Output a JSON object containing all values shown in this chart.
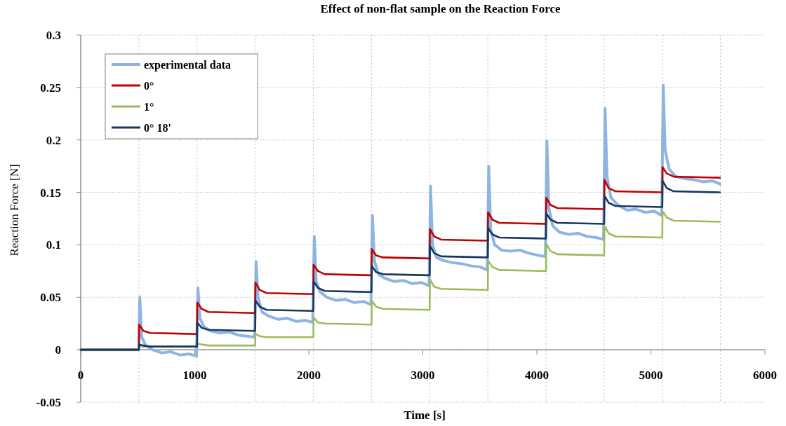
{
  "chart_data": {
    "type": "line",
    "title": "Effect of non-flat sample on the Reaction Force",
    "xlabel": "Time [s]",
    "ylabel": "Reaction Force [N]",
    "x": [
      0,
      510,
      512,
      550,
      610,
      1015,
      1020,
      1022,
      1060,
      1120,
      1525,
      1530,
      1532,
      1570,
      1630,
      2035,
      2040,
      2042,
      2080,
      2140,
      2545,
      2550,
      2552,
      2590,
      2650,
      3055,
      3060,
      3062,
      3100,
      3160,
      3565,
      3570,
      3572,
      3610,
      3670,
      4075,
      4080,
      4082,
      4120,
      4180,
      4585,
      4590,
      4592,
      4630,
      4690,
      5095,
      5100,
      5102,
      5140,
      5200,
      5605
    ],
    "series": [
      {
        "name": "experimental data",
        "color": "#8db4e2",
        "x": [
          0,
          510,
          518,
          535,
          570,
          630,
          710,
          790,
          870,
          950,
          1015,
          1028,
          1045,
          1080,
          1140,
          1220,
          1300,
          1380,
          1460,
          1525,
          1538,
          1555,
          1590,
          1650,
          1730,
          1810,
          1890,
          1970,
          2035,
          2048,
          2065,
          2100,
          2160,
          2240,
          2320,
          2400,
          2480,
          2545,
          2558,
          2575,
          2610,
          2670,
          2750,
          2830,
          2910,
          2990,
          3055,
          3068,
          3085,
          3120,
          3180,
          3260,
          3340,
          3420,
          3500,
          3565,
          3578,
          3595,
          3630,
          3690,
          3770,
          3850,
          3930,
          4010,
          4075,
          4088,
          4105,
          4140,
          4200,
          4280,
          4360,
          4440,
          4520,
          4585,
          4598,
          4615,
          4650,
          4710,
          4790,
          4870,
          4950,
          5030,
          5095,
          5108,
          5125,
          5160,
          5220,
          5300,
          5380,
          5460,
          5540,
          5605
        ],
        "values": [
          0,
          0,
          0.05,
          0.012,
          0.004,
          0.0,
          -0.003,
          -0.002,
          -0.005,
          -0.004,
          -0.006,
          0.059,
          0.03,
          0.022,
          0.018,
          0.016,
          0.017,
          0.014,
          0.013,
          0.012,
          0.084,
          0.05,
          0.036,
          0.032,
          0.029,
          0.03,
          0.027,
          0.028,
          0.026,
          0.108,
          0.065,
          0.055,
          0.05,
          0.047,
          0.048,
          0.045,
          0.046,
          0.043,
          0.128,
          0.085,
          0.072,
          0.068,
          0.065,
          0.066,
          0.063,
          0.064,
          0.061,
          0.156,
          0.1,
          0.088,
          0.085,
          0.083,
          0.082,
          0.08,
          0.079,
          0.076,
          0.175,
          0.115,
          0.1,
          0.095,
          0.094,
          0.095,
          0.092,
          0.09,
          0.089,
          0.199,
          0.135,
          0.118,
          0.112,
          0.11,
          0.111,
          0.108,
          0.107,
          0.105,
          0.23,
          0.165,
          0.145,
          0.138,
          0.133,
          0.134,
          0.131,
          0.132,
          0.128,
          0.252,
          0.19,
          0.172,
          0.165,
          0.163,
          0.162,
          0.16,
          0.161,
          0.158
        ]
      },
      {
        "name": "0°",
        "color": "#c00000",
        "values": [
          0,
          0,
          0.024,
          0.018,
          0.016,
          0.015,
          0.015,
          0.045,
          0.039,
          0.036,
          0.035,
          0.035,
          0.064,
          0.057,
          0.054,
          0.053,
          0.053,
          0.081,
          0.075,
          0.072,
          0.071,
          0.071,
          0.096,
          0.09,
          0.088,
          0.087,
          0.087,
          0.115,
          0.108,
          0.105,
          0.104,
          0.104,
          0.131,
          0.124,
          0.121,
          0.12,
          0.12,
          0.145,
          0.138,
          0.135,
          0.134,
          0.134,
          0.162,
          0.154,
          0.151,
          0.15,
          0.15,
          0.174,
          0.168,
          0.165,
          0.164
        ]
      },
      {
        "name": "1°",
        "color": "#9bbb59",
        "values": [
          0,
          0,
          0.004,
          0.003,
          0.003,
          0.003,
          0.003,
          0.006,
          0.005,
          0.004,
          0.004,
          0.004,
          0.015,
          0.013,
          0.012,
          0.012,
          0.012,
          0.031,
          0.026,
          0.025,
          0.024,
          0.024,
          0.047,
          0.041,
          0.039,
          0.038,
          0.038,
          0.067,
          0.06,
          0.058,
          0.057,
          0.057,
          0.085,
          0.079,
          0.076,
          0.075,
          0.075,
          0.101,
          0.094,
          0.091,
          0.09,
          0.09,
          0.118,
          0.111,
          0.108,
          0.107,
          0.107,
          0.132,
          0.126,
          0.123,
          0.122
        ]
      },
      {
        "name": "0° 18'",
        "color": "#17375e",
        "values": [
          0,
          0,
          0.005,
          0.004,
          0.003,
          0.003,
          0.003,
          0.026,
          0.021,
          0.019,
          0.018,
          0.018,
          0.047,
          0.041,
          0.038,
          0.037,
          0.037,
          0.065,
          0.059,
          0.056,
          0.055,
          0.055,
          0.08,
          0.074,
          0.072,
          0.071,
          0.071,
          0.099,
          0.092,
          0.089,
          0.088,
          0.088,
          0.116,
          0.11,
          0.107,
          0.106,
          0.106,
          0.13,
          0.124,
          0.121,
          0.12,
          0.12,
          0.147,
          0.14,
          0.137,
          0.136,
          0.136,
          0.161,
          0.154,
          0.151,
          0.15
        ]
      }
    ],
    "xlim": [
      0,
      6000
    ],
    "xticks": [
      0,
      1000,
      2000,
      3000,
      4000,
      5000,
      6000
    ],
    "ylim": [
      -0.05,
      0.3
    ],
    "yticks": [
      -0.05,
      0,
      0.05,
      0.1,
      0.15,
      0.2,
      0.25,
      0.3
    ],
    "grid": "y",
    "legend": "top left",
    "marker": "none",
    "line_style": "solid",
    "ref_lines": [
      {
        "axis": "x",
        "value": 510,
        "color": "#c8c8c8",
        "line_style": "dotted"
      },
      {
        "axis": "x",
        "value": 1020,
        "color": "#c8c8c8",
        "line_style": "dotted"
      },
      {
        "axis": "x",
        "value": 1530,
        "color": "#c8c8c8",
        "line_style": "dotted"
      },
      {
        "axis": "x",
        "value": 2040,
        "color": "#c8c8c8",
        "line_style": "dotted"
      },
      {
        "axis": "x",
        "value": 2550,
        "color": "#c8c8c8",
        "line_style": "dotted"
      },
      {
        "axis": "x",
        "value": 3060,
        "color": "#c8c8c8",
        "line_style": "dotted"
      },
      {
        "axis": "x",
        "value": 3570,
        "color": "#c8c8c8",
        "line_style": "dotted"
      },
      {
        "axis": "x",
        "value": 4080,
        "color": "#c8c8c8",
        "line_style": "dotted"
      },
      {
        "axis": "x",
        "value": 4590,
        "color": "#c8c8c8",
        "line_style": "dotted"
      },
      {
        "axis": "x",
        "value": 5100,
        "color": "#c8c8c8",
        "line_style": "dotted"
      },
      {
        "axis": "x",
        "value": 5610,
        "color": "#c8c8c8",
        "line_style": "dotted"
      }
    ]
  }
}
